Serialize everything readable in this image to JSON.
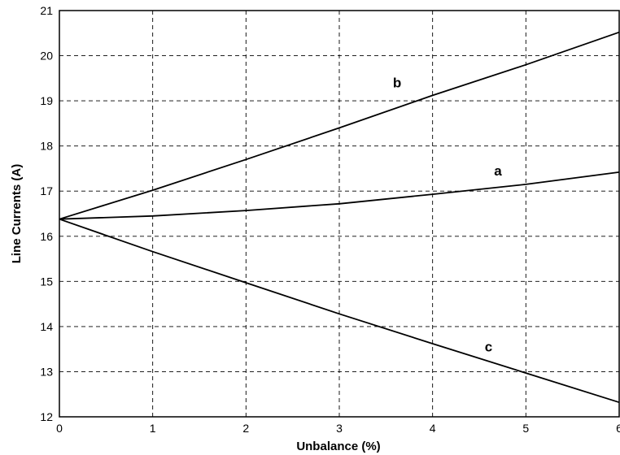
{
  "chart_data": {
    "type": "line",
    "title": "",
    "xlabel": "Unbalance (%)",
    "ylabel": "Line Currents (A)",
    "xlim": [
      0,
      6
    ],
    "ylim": [
      12,
      21
    ],
    "xticks": [
      "0",
      "1",
      "2",
      "3",
      "4",
      "5",
      "6"
    ],
    "yticks": [
      "12",
      "13",
      "14",
      "15",
      "16",
      "17",
      "18",
      "19",
      "20",
      "21"
    ],
    "grid": true,
    "series": [
      {
        "name": "a",
        "x": [
          0,
          1,
          2,
          3,
          4,
          5,
          6
        ],
        "values": [
          16.38,
          16.45,
          16.57,
          16.72,
          16.93,
          17.15,
          17.42
        ]
      },
      {
        "name": "b",
        "x": [
          0,
          1,
          2,
          3,
          4,
          5,
          6
        ],
        "values": [
          16.38,
          17.02,
          17.7,
          18.4,
          19.12,
          19.8,
          20.52
        ]
      },
      {
        "name": "c",
        "x": [
          0,
          1,
          2,
          3,
          4,
          5,
          6
        ],
        "values": [
          16.38,
          15.66,
          14.97,
          14.28,
          13.62,
          12.97,
          12.32
        ]
      }
    ],
    "series_labels": [
      {
        "text": "a",
        "x": 4.7,
        "y": 17.35
      },
      {
        "text": "b",
        "x": 3.62,
        "y": 19.3
      },
      {
        "text": "c",
        "x": 4.6,
        "y": 13.45
      }
    ]
  }
}
